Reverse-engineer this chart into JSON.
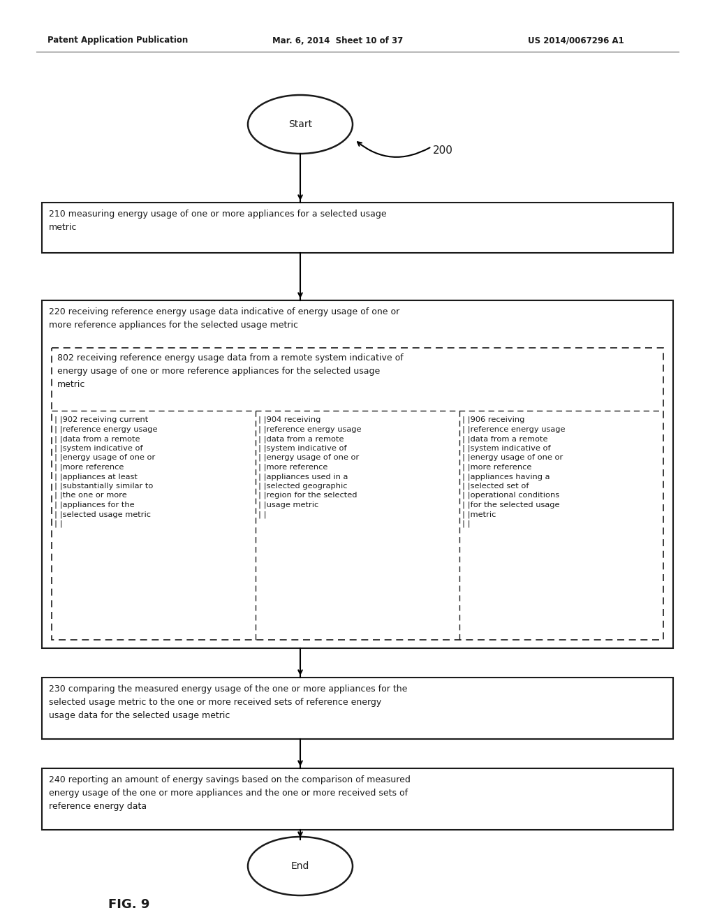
{
  "header_left": "Patent Application Publication",
  "header_mid": "Mar. 6, 2014  Sheet 10 of 37",
  "header_right": "US 2014/0067296 A1",
  "fig_label": "FIG. 9",
  "label_200": "200",
  "start_label": "Start",
  "end_label": "End",
  "box210_text": "210 measuring energy usage of one or more appliances for a selected usage\nmetric",
  "box220_text": "220 receiving reference energy usage data indicative of energy usage of one or\nmore reference appliances for the selected usage metric",
  "box802_text": "802 receiving reference energy usage data from a remote system indicative of\nenergy usage of one or more reference appliances for the selected usage\nmetric",
  "box902_lines": [
    "| |902 receiving current",
    "| |reference energy usage",
    "| |data from a remote",
    "| |system indicative of",
    "| |energy usage of one or",
    "| |more reference",
    "| |appliances at least",
    "| |substantially similar to",
    "| |the one or more",
    "| |appliances for the",
    "| |selected usage metric",
    "| |"
  ],
  "box904_lines": [
    "| |904 receiving",
    "| |reference energy usage",
    "| |data from a remote",
    "| |system indicative of",
    "| |energy usage of one or",
    "| |more reference",
    "| |appliances used in a",
    "| |selected geographic",
    "| |region for the selected",
    "| |usage metric",
    "| |"
  ],
  "box906_lines": [
    "| |906 receiving",
    "| |reference energy usage",
    "| |data from a remote",
    "| |system indicative of",
    "| |energy usage of one or",
    "| |more reference",
    "| |appliances having a",
    "| |selected set of",
    "| |operational conditions",
    "| |for the selected usage",
    "| |metric",
    "| |"
  ],
  "box230_text": "230 comparing the measured energy usage of the one or more appliances for the\nselected usage metric to the one or more received sets of reference energy\nusage data for the selected usage metric",
  "box240_text": "240 reporting an amount of energy savings based on the comparison of measured\nenergy usage of the one or more appliances and the one or more received sets of\nreference energy data",
  "bg_color": "#ffffff",
  "text_color": "#1a1a1a",
  "box_edge_color": "#1a1a1a",
  "dashed_color": "#1a1a1a",
  "header_color": "#1a1a1a"
}
